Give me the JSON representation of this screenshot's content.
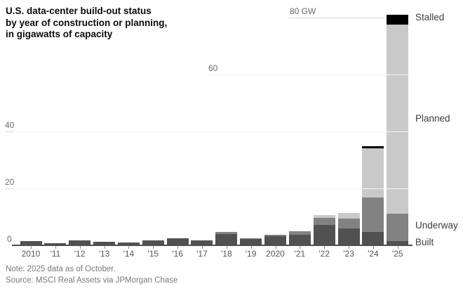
{
  "title": {
    "lines": [
      "U.S. data-center build-out status",
      "by year of construction or planning,",
      "in gigawatts of capacity"
    ]
  },
  "note": "Note: 2025 data as of October.",
  "source": "Source: MSCI Real Assets via JPMorgan Chase",
  "chart_data": {
    "type": "bar",
    "stacked": true,
    "unit": "GW",
    "title": "U.S. data-center build-out status by year of construction or planning, in gigawatts of capacity",
    "categories": [
      "2010",
      "'11",
      "'12",
      "'13",
      "'14",
      "'15",
      "'16",
      "'17",
      "'18",
      "'19",
      "2020",
      "'21",
      "'22",
      "'23",
      "'24",
      "'25"
    ],
    "series": [
      {
        "name": "Built",
        "color": "#515151",
        "values": [
          1.3,
          0.7,
          1.5,
          1.1,
          0.9,
          1.5,
          2.3,
          1.7,
          3.8,
          2.0,
          3.0,
          3.7,
          7.0,
          5.8,
          4.6,
          1.4
        ]
      },
      {
        "name": "Underway",
        "color": "#828282",
        "values": [
          0,
          0,
          0,
          0,
          0,
          0,
          0,
          0,
          0.7,
          0.4,
          0.5,
          1.0,
          2.5,
          3.5,
          12.1,
          9.7
        ]
      },
      {
        "name": "Planned",
        "color": "#c9c9c9",
        "values": [
          0,
          0,
          0,
          0,
          0,
          0,
          0,
          0,
          0,
          0,
          0,
          0,
          1.1,
          1.9,
          17.2,
          66.2
        ]
      },
      {
        "name": "Stalled",
        "color": "#000000",
        "values": [
          0,
          0,
          0,
          0,
          0,
          0,
          0,
          0,
          0,
          0,
          0,
          0,
          0,
          0,
          0.7,
          3.5
        ]
      }
    ],
    "y_axis": {
      "ticks": [
        0,
        20,
        40,
        60,
        80
      ],
      "tick_labels": [
        "0",
        "20",
        "40",
        "60",
        "80 GW"
      ],
      "max": 85,
      "grid": true
    },
    "legend_labels": [
      "Stalled",
      "Planned",
      "Underway",
      "Built"
    ],
    "legend_position": "right"
  }
}
